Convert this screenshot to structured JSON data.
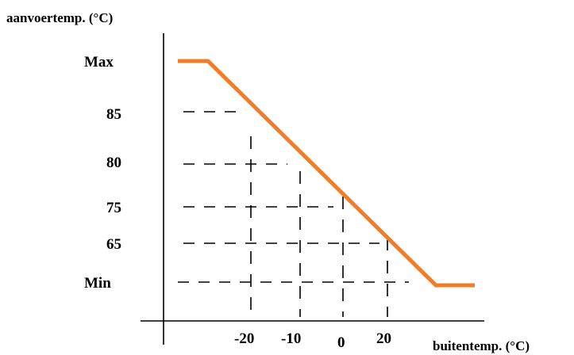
{
  "chart_data": {
    "type": "line",
    "ylabel": "aanvoertemp. (°C)",
    "xlabel": "buitentemp. (°C)",
    "y_tick_labels": [
      "Max",
      "85",
      "80",
      "75",
      "65",
      "Min"
    ],
    "x_tick_labels": [
      "-20",
      "-10",
      "0",
      "20"
    ],
    "grid": "dashed guide lines from each y-label to the curve and from each x-label up to the curve",
    "series": [
      {
        "color": "#f07d2a",
        "points": [
          {
            "x": "start",
            "y": "Max"
          },
          {
            "x": "knee",
            "y": "Max"
          },
          {
            "x": "-20",
            "y": "85"
          },
          {
            "x": "-10",
            "y": "80"
          },
          {
            "x": "0",
            "y": "75"
          },
          {
            "x": "20",
            "y": "65"
          },
          {
            "x": "knee",
            "y": "Min"
          },
          {
            "x": "end",
            "y": "Min"
          }
        ]
      }
    ]
  }
}
